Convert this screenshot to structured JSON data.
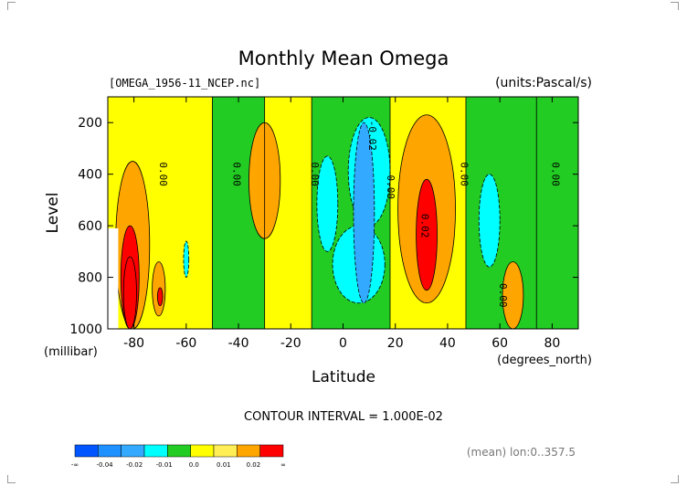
{
  "chart_data": {
    "type": "heatmap",
    "subtype": "filled-contour",
    "title": "Monthly Mean Omega",
    "file_label": "[OMEGA_1956-11_NCEP.nc]",
    "units_label": "(units:Pascal/s)",
    "xlabel": "Latitude",
    "x_units": "(degrees_north)",
    "ylabel": "Level",
    "y_units": "(millibar)",
    "xlim": [
      -90,
      90
    ],
    "ylim": [
      1000,
      100
    ],
    "x_ticks": [
      -80,
      -60,
      -40,
      -20,
      0,
      20,
      40,
      60,
      80
    ],
    "x_tick_labels": [
      "-80",
      "-60",
      "-40",
      "-20",
      "0",
      "20",
      "40",
      "60",
      "80"
    ],
    "y_ticks": [
      200,
      400,
      600,
      800,
      1000
    ],
    "y_tick_labels": [
      "200",
      "400",
      "600",
      "800",
      "1000"
    ],
    "contour_interval_label": "CONTOUR INTERVAL = 1.000E-02",
    "mean_label": "(mean) lon:0..357.5",
    "colorbar": {
      "colors": [
        "#0055ff",
        "#1e90ff",
        "#33aaff",
        "#00ffff",
        "#22cc22",
        "#ffff00",
        "#ffee55",
        "#ffa500",
        "#ff0000"
      ],
      "labels": [
        "-∞",
        "-0.04",
        "-0.02",
        "-0.01",
        "0.0",
        "0.01",
        "0.02",
        "∞"
      ]
    },
    "contour_labels": [
      {
        "lat": -70,
        "lev": 400,
        "text": "0.00"
      },
      {
        "lat": -42,
        "lev": 400,
        "text": "0.00"
      },
      {
        "lat": -12,
        "lev": 400,
        "text": "0.00"
      },
      {
        "lat": 10,
        "lev": 250,
        "text": "-0.02"
      },
      {
        "lat": 17,
        "lev": 450,
        "text": "0.00"
      },
      {
        "lat": 30,
        "lev": 600,
        "text": "0.02"
      },
      {
        "lat": 45,
        "lev": 400,
        "text": "0.00"
      },
      {
        "lat": 80,
        "lev": 400,
        "text": "0.00"
      },
      {
        "lat": 60,
        "lev": 870,
        "text": "0.00"
      }
    ],
    "field_regions": [
      {
        "level": -0.01,
        "lat0": -10,
        "lat1": -2,
        "lev0": 330,
        "lev1": 700
      },
      {
        "level": -0.01,
        "lat0": -4,
        "lat1": 16,
        "lev0": 600,
        "lev1": 900
      },
      {
        "level": -0.01,
        "lat0": 2,
        "lat1": 18,
        "lev0": 180,
        "lev1": 600
      },
      {
        "level": -0.02,
        "lat0": 4,
        "lat1": 12,
        "lev0": 200,
        "lev1": 900
      },
      {
        "level": -0.01,
        "lat0": 52,
        "lat1": 60,
        "lev0": 400,
        "lev1": 760
      },
      {
        "level": -0.01,
        "lat0": -61,
        "lat1": -59,
        "lev0": 660,
        "lev1": 800
      },
      {
        "level": 0.01,
        "lat0": -87,
        "lat1": -74,
        "lev0": 350,
        "lev1": 1000
      },
      {
        "level": 0.02,
        "lat0": -85,
        "lat1": -78,
        "lev0": 600,
        "lev1": 1000
      },
      {
        "level": 0.03,
        "lat0": -84,
        "lat1": -79,
        "lev0": 720,
        "lev1": 1000
      },
      {
        "level": 0.01,
        "lat0": -73,
        "lat1": -68,
        "lev0": 740,
        "lev1": 950
      },
      {
        "level": 0.03,
        "lat0": -71,
        "lat1": -69,
        "lev0": 840,
        "lev1": 910
      },
      {
        "level": 0.01,
        "lat0": -36,
        "lat1": -24,
        "lev0": 200,
        "lev1": 650
      },
      {
        "level": 0.01,
        "lat0": 21,
        "lat1": 43,
        "lev0": 170,
        "lev1": 900
      },
      {
        "level": 0.02,
        "lat0": 28,
        "lat1": 36,
        "lev0": 420,
        "lev1": 850
      },
      {
        "level": 0.01,
        "lat0": 61,
        "lat1": 69,
        "lev0": 740,
        "lev1": 1000
      }
    ],
    "zero_contour_lat": [
      -90,
      -50,
      -30,
      -12,
      18,
      47,
      74
    ]
  }
}
